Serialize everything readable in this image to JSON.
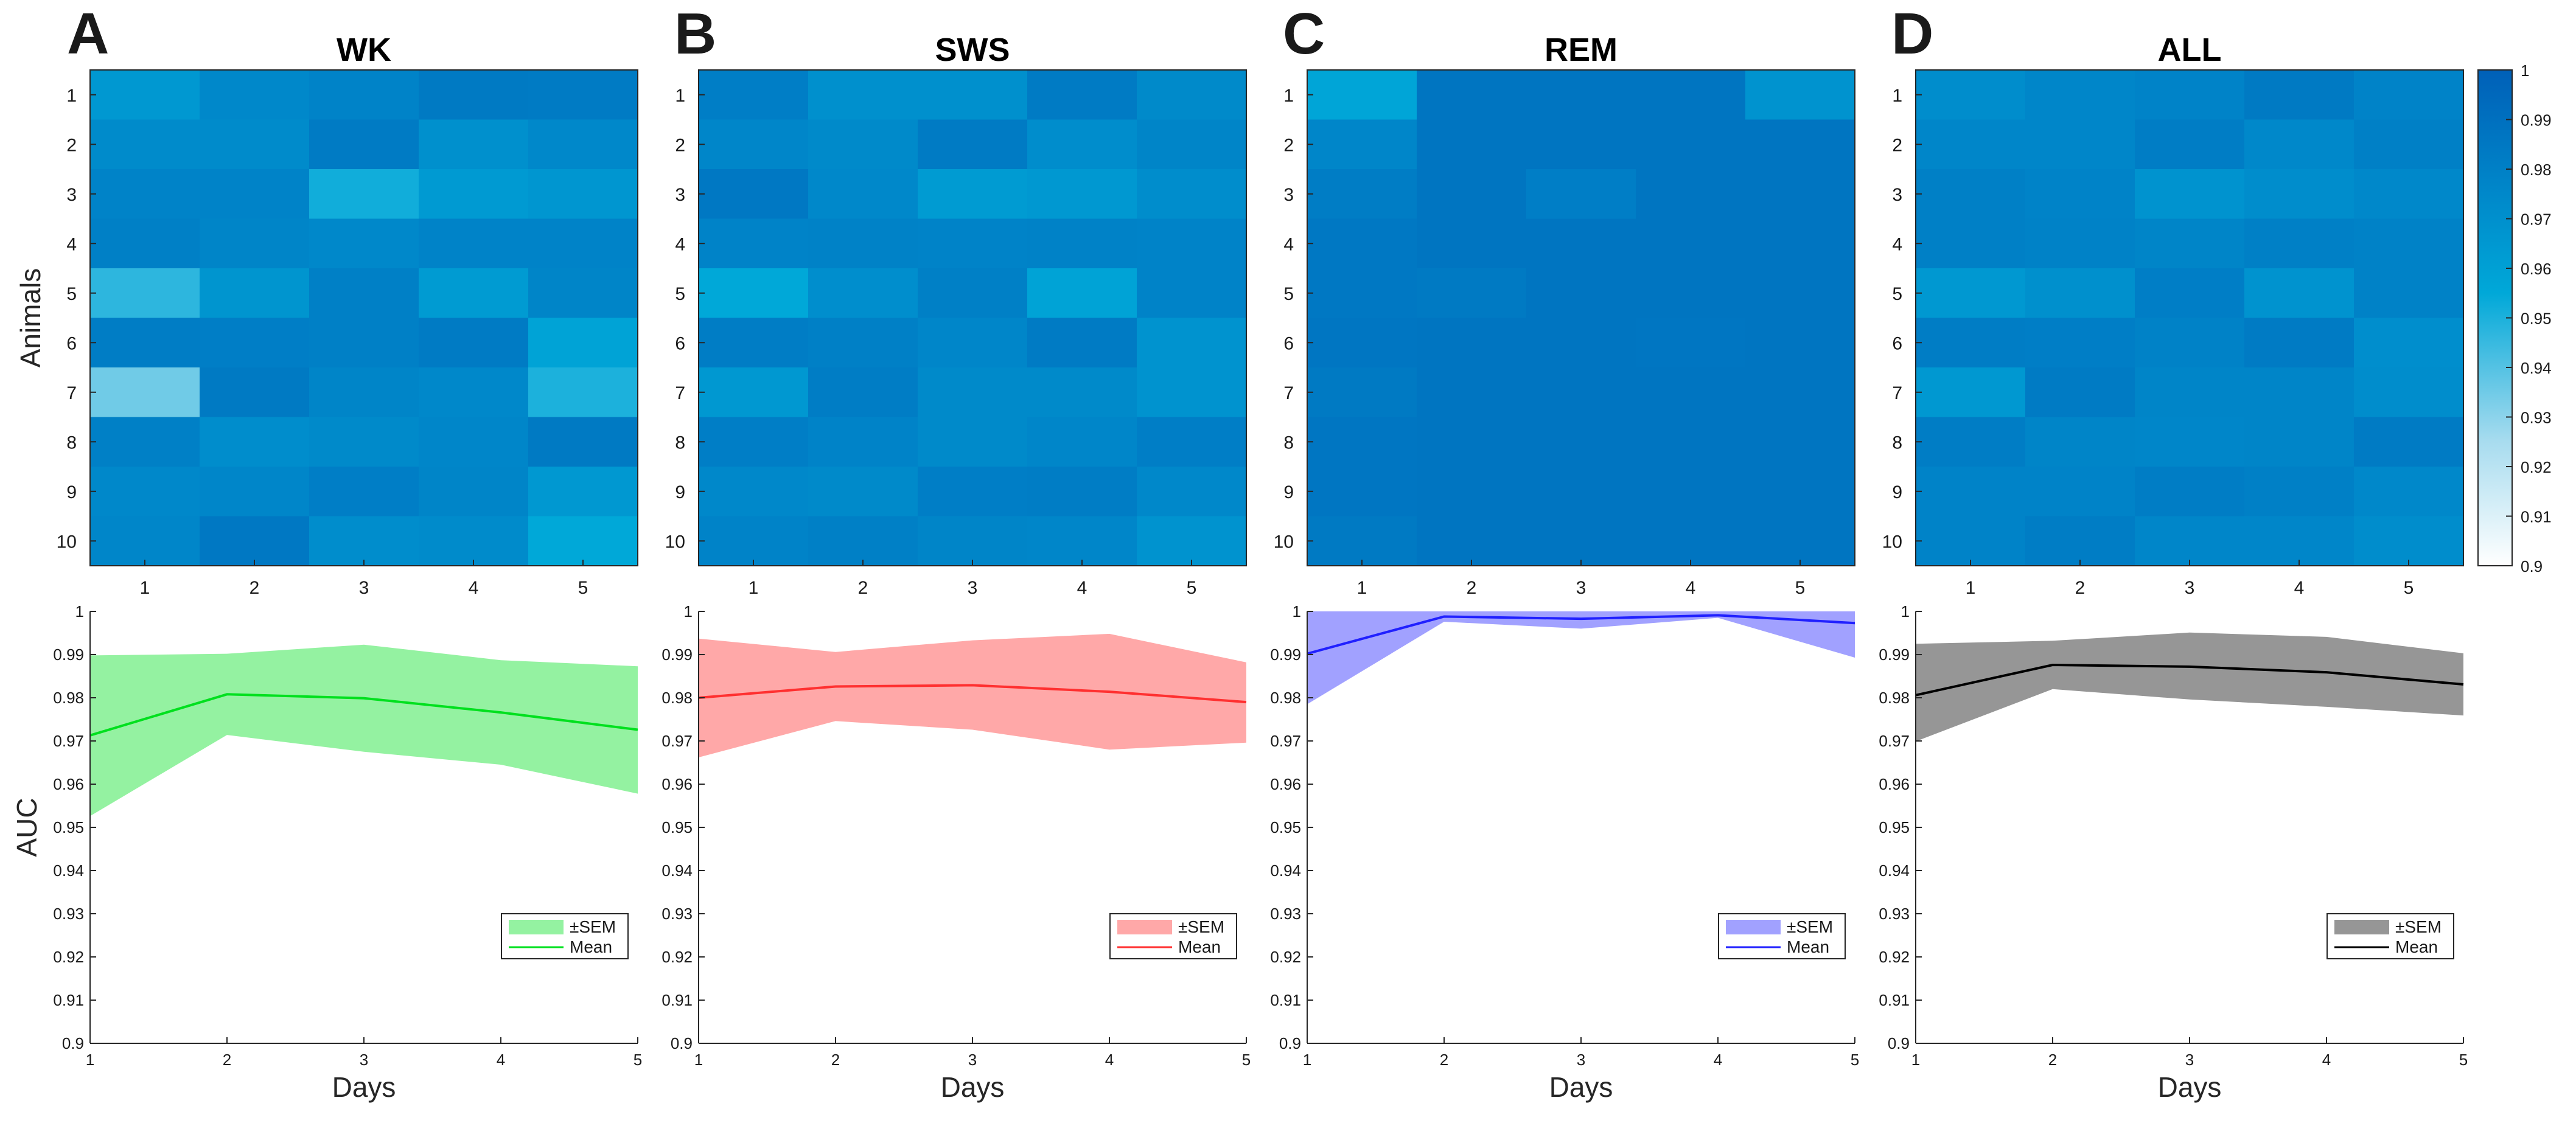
{
  "panel_letters": [
    "A",
    "B",
    "C",
    "D"
  ],
  "colorbar": {
    "ticks": [
      "1",
      "0.99",
      "0.98",
      "0.97",
      "0.96",
      "0.95",
      "0.94",
      "0.93",
      "0.92",
      "0.91",
      "0.9"
    ]
  },
  "colors": {
    "WK": "#00e01e",
    "SWS": "#ff3030",
    "REM": "#2020ff",
    "ALL": "#000000"
  },
  "chart_data": [
    {
      "type": "heatmap",
      "title": "WK",
      "xlabel": "",
      "ylabel": "Animals",
      "x": [
        "1",
        "2",
        "3",
        "4",
        "5"
      ],
      "y": [
        "1",
        "2",
        "3",
        "4",
        "5",
        "6",
        "7",
        "8",
        "9",
        "10"
      ],
      "clim": [
        0.9,
        1
      ],
      "values": [
        [
          0.965,
          0.975,
          0.978,
          0.984,
          0.983
        ],
        [
          0.973,
          0.973,
          0.983,
          0.97,
          0.975
        ],
        [
          0.978,
          0.978,
          0.952,
          0.964,
          0.966
        ],
        [
          0.98,
          0.977,
          0.975,
          0.978,
          0.978
        ],
        [
          0.947,
          0.967,
          0.98,
          0.963,
          0.977
        ],
        [
          0.982,
          0.981,
          0.98,
          0.983,
          0.958
        ],
        [
          0.935,
          0.984,
          0.977,
          0.975,
          0.95
        ],
        [
          0.98,
          0.972,
          0.974,
          0.976,
          0.984
        ],
        [
          0.975,
          0.976,
          0.981,
          0.977,
          0.965
        ],
        [
          0.976,
          0.985,
          0.972,
          0.973,
          0.955
        ]
      ]
    },
    {
      "type": "heatmap",
      "title": "SWS",
      "xlabel": "",
      "ylabel": "",
      "x": [
        "1",
        "2",
        "3",
        "4",
        "5"
      ],
      "y": [
        "1",
        "2",
        "3",
        "4",
        "5",
        "6",
        "7",
        "8",
        "9",
        "10"
      ],
      "clim": [
        0.9,
        1
      ],
      "values": [
        [
          0.981,
          0.97,
          0.97,
          0.983,
          0.974
        ],
        [
          0.976,
          0.974,
          0.983,
          0.972,
          0.977
        ],
        [
          0.985,
          0.975,
          0.963,
          0.965,
          0.972
        ],
        [
          0.978,
          0.979,
          0.978,
          0.979,
          0.978
        ],
        [
          0.955,
          0.971,
          0.98,
          0.958,
          0.978
        ],
        [
          0.982,
          0.98,
          0.976,
          0.983,
          0.968
        ],
        [
          0.965,
          0.982,
          0.974,
          0.974,
          0.968
        ],
        [
          0.981,
          0.978,
          0.974,
          0.976,
          0.981
        ],
        [
          0.975,
          0.974,
          0.981,
          0.982,
          0.975
        ],
        [
          0.978,
          0.98,
          0.977,
          0.976,
          0.968
        ]
      ]
    },
    {
      "type": "heatmap",
      "title": "REM",
      "xlabel": "",
      "ylabel": "",
      "x": [
        "1",
        "2",
        "3",
        "4",
        "5"
      ],
      "y": [
        "1",
        "2",
        "3",
        "4",
        "5",
        "6",
        "7",
        "8",
        "9",
        "10"
      ],
      "clim": [
        0.9,
        1
      ],
      "values": [
        [
          0.957,
          0.987,
          0.987,
          0.987,
          0.968
        ],
        [
          0.976,
          0.987,
          0.987,
          0.987,
          0.987
        ],
        [
          0.982,
          0.987,
          0.981,
          0.987,
          0.987
        ],
        [
          0.985,
          0.987,
          0.987,
          0.987,
          0.987
        ],
        [
          0.985,
          0.984,
          0.987,
          0.987,
          0.987
        ],
        [
          0.986,
          0.987,
          0.987,
          0.986,
          0.987
        ],
        [
          0.984,
          0.987,
          0.987,
          0.987,
          0.987
        ],
        [
          0.986,
          0.987,
          0.987,
          0.987,
          0.987
        ],
        [
          0.986,
          0.987,
          0.987,
          0.987,
          0.987
        ],
        [
          0.984,
          0.987,
          0.987,
          0.987,
          0.987
        ]
      ]
    },
    {
      "type": "heatmap",
      "title": "ALL",
      "xlabel": "",
      "ylabel": "",
      "x": [
        "1",
        "2",
        "3",
        "4",
        "5"
      ],
      "y": [
        "1",
        "2",
        "3",
        "4",
        "5",
        "6",
        "7",
        "8",
        "9",
        "10"
      ],
      "clim": [
        0.9,
        1
      ],
      "values": [
        [
          0.972,
          0.976,
          0.978,
          0.984,
          0.978
        ],
        [
          0.976,
          0.976,
          0.982,
          0.975,
          0.98
        ],
        [
          0.98,
          0.978,
          0.968,
          0.972,
          0.975
        ],
        [
          0.98,
          0.979,
          0.977,
          0.98,
          0.979
        ],
        [
          0.965,
          0.97,
          0.981,
          0.968,
          0.979
        ],
        [
          0.982,
          0.981,
          0.979,
          0.983,
          0.971
        ],
        [
          0.965,
          0.983,
          0.977,
          0.977,
          0.972
        ],
        [
          0.982,
          0.977,
          0.976,
          0.977,
          0.983
        ],
        [
          0.978,
          0.978,
          0.982,
          0.98,
          0.975
        ],
        [
          0.978,
          0.982,
          0.976,
          0.976,
          0.972
        ]
      ]
    },
    {
      "type": "line",
      "title": "",
      "xlabel": "Days",
      "ylabel": "AUC",
      "xlim": [
        1,
        5
      ],
      "ylim": [
        0.9,
        1
      ],
      "x": [
        1,
        2,
        3,
        4,
        5
      ],
      "x_ticks": [
        "1",
        "2",
        "3",
        "4",
        "5"
      ],
      "y_ticks": [
        "0.9",
        "0.91",
        "0.92",
        "0.93",
        "0.94",
        "0.95",
        "0.96",
        "0.97",
        "0.98",
        "0.99",
        "1"
      ],
      "legend": [
        "±SEM",
        "Mean"
      ],
      "legend_position": "bottom-right",
      "series": [
        {
          "name": "Mean",
          "color_key": "WK",
          "values": [
            0.9713,
            0.9808,
            0.9799,
            0.9766,
            0.9726
          ],
          "lower": [
            0.9526,
            0.9714,
            0.9675,
            0.9645,
            0.9578
          ],
          "upper": [
            0.9898,
            0.9902,
            0.9923,
            0.9887,
            0.9873
          ]
        }
      ]
    },
    {
      "type": "line",
      "title": "",
      "xlabel": "Days",
      "ylabel": "",
      "xlim": [
        1,
        5
      ],
      "ylim": [
        0.9,
        1
      ],
      "x": [
        1,
        2,
        3,
        4,
        5
      ],
      "x_ticks": [
        "1",
        "2",
        "3",
        "4",
        "5"
      ],
      "y_ticks": [
        "0.9",
        "0.91",
        "0.92",
        "0.93",
        "0.94",
        "0.95",
        "0.96",
        "0.97",
        "0.98",
        "0.99",
        "1"
      ],
      "legend": [
        "±SEM",
        "Mean"
      ],
      "legend_position": "bottom-right",
      "series": [
        {
          "name": "Mean",
          "color_key": "SWS",
          "values": [
            0.98,
            0.9826,
            0.9829,
            0.9814,
            0.979
          ],
          "lower": [
            0.9662,
            0.9746,
            0.9726,
            0.968,
            0.9696
          ],
          "upper": [
            0.9937,
            0.9906,
            0.9933,
            0.9948,
            0.9882
          ]
        }
      ]
    },
    {
      "type": "line",
      "title": "",
      "xlabel": "Days",
      "ylabel": "",
      "xlim": [
        1,
        5
      ],
      "ylim": [
        0.9,
        1
      ],
      "x": [
        1,
        2,
        3,
        4,
        5
      ],
      "x_ticks": [
        "1",
        "2",
        "3",
        "4",
        "5"
      ],
      "y_ticks": [
        "0.9",
        "0.91",
        "0.92",
        "0.93",
        "0.94",
        "0.95",
        "0.96",
        "0.97",
        "0.98",
        "0.99",
        "1"
      ],
      "legend": [
        "±SEM",
        "Mean"
      ],
      "legend_position": "bottom-right",
      "series": [
        {
          "name": "Mean",
          "color_key": "REM",
          "values": [
            0.9902,
            0.9988,
            0.9983,
            0.9991,
            0.9973
          ],
          "lower": [
            0.9785,
            0.9976,
            0.996,
            0.9985,
            0.9893
          ],
          "upper": [
            1.0,
            1.0,
            1.0,
            1.0,
            1.0
          ]
        }
      ]
    },
    {
      "type": "line",
      "title": "",
      "xlabel": "Days",
      "ylabel": "",
      "xlim": [
        1,
        5
      ],
      "ylim": [
        0.9,
        1
      ],
      "x": [
        1,
        2,
        3,
        4,
        5
      ],
      "x_ticks": [
        "1",
        "2",
        "3",
        "4",
        "5"
      ],
      "y_ticks": [
        "0.9",
        "0.91",
        "0.92",
        "0.93",
        "0.94",
        "0.95",
        "0.96",
        "0.97",
        "0.98",
        "0.99",
        "1"
      ],
      "legend": [
        "±SEM",
        "Mean"
      ],
      "legend_position": "bottom-right",
      "series": [
        {
          "name": "Mean",
          "color_key": "ALL",
          "values": [
            0.9806,
            0.9876,
            0.9872,
            0.9859,
            0.9831
          ],
          "lower": [
            0.9699,
            0.982,
            0.9796,
            0.9779,
            0.9759
          ],
          "upper": [
            0.9925,
            0.9932,
            0.9951,
            0.9941,
            0.9903
          ]
        }
      ]
    }
  ]
}
